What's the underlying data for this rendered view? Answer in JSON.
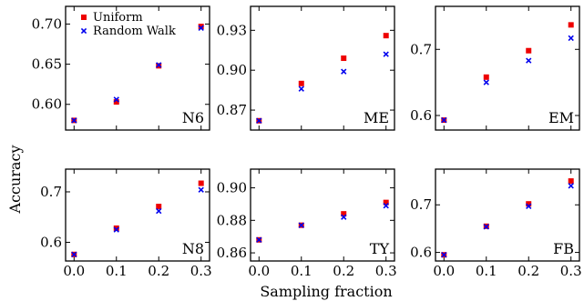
{
  "chart_data": {
    "type": "scatter",
    "xlabel": "Sampling fraction",
    "ylabel": "Accuracy",
    "legend": {
      "placement": "top-left panel, upper-left",
      "entries": [
        {
          "name": "Uniform",
          "marker": "square",
          "color": "#ee0000"
        },
        {
          "name": "Random Walk",
          "marker": "x",
          "color": "#0000ee"
        }
      ]
    },
    "x_ticks": [
      "0.0",
      "0.1",
      "0.2",
      "0.3"
    ],
    "panels": [
      {
        "label": "N6",
        "xlim": [
          -0.02,
          0.32
        ],
        "ylim": [
          0.568,
          0.722
        ],
        "y_ticks": [
          0.6,
          0.65,
          0.7
        ],
        "y_tick_labels": [
          "0.60",
          "0.65",
          "0.70"
        ],
        "series": [
          {
            "name": "Uniform",
            "x": [
              0.0,
              0.1,
              0.2,
              0.3
            ],
            "y": [
              0.58,
              0.603,
              0.648,
              0.697
            ]
          },
          {
            "name": "Random Walk",
            "x": [
              0.0,
              0.1,
              0.2,
              0.3
            ],
            "y": [
              0.58,
              0.606,
              0.649,
              0.695
            ]
          }
        ]
      },
      {
        "label": "ME",
        "xlim": [
          -0.02,
          0.32
        ],
        "ylim": [
          0.855,
          0.948
        ],
        "y_ticks": [
          0.87,
          0.9,
          0.93
        ],
        "y_tick_labels": [
          "0.87",
          "0.90",
          "0.93"
        ],
        "series": [
          {
            "name": "Uniform",
            "x": [
              0.0,
              0.1,
              0.2,
              0.3
            ],
            "y": [
              0.862,
              0.89,
              0.909,
              0.926
            ]
          },
          {
            "name": "Random Walk",
            "x": [
              0.0,
              0.1,
              0.2,
              0.3
            ],
            "y": [
              0.862,
              0.886,
              0.899,
              0.912
            ]
          }
        ]
      },
      {
        "label": "EM",
        "xlim": [
          -0.02,
          0.32
        ],
        "ylim": [
          0.578,
          0.765
        ],
        "y_ticks": [
          0.6,
          0.7
        ],
        "y_tick_labels": [
          "0.6",
          "0.7"
        ],
        "series": [
          {
            "name": "Uniform",
            "x": [
              0.0,
              0.1,
              0.2,
              0.3
            ],
            "y": [
              0.593,
              0.658,
              0.698,
              0.737
            ]
          },
          {
            "name": "Random Walk",
            "x": [
              0.0,
              0.1,
              0.2,
              0.3
            ],
            "y": [
              0.593,
              0.65,
              0.683,
              0.717
            ]
          }
        ]
      },
      {
        "label": "N8",
        "xlim": [
          -0.02,
          0.32
        ],
        "ylim": [
          0.563,
          0.745
        ],
        "y_ticks": [
          0.6,
          0.7
        ],
        "y_tick_labels": [
          "0.6",
          "0.7"
        ],
        "series": [
          {
            "name": "Uniform",
            "x": [
              0.0,
              0.1,
              0.2,
              0.3
            ],
            "y": [
              0.576,
              0.628,
              0.671,
              0.717
            ]
          },
          {
            "name": "Random Walk",
            "x": [
              0.0,
              0.1,
              0.2,
              0.3
            ],
            "y": [
              0.576,
              0.625,
              0.662,
              0.704
            ]
          }
        ]
      },
      {
        "label": "TY",
        "xlim": [
          -0.02,
          0.32
        ],
        "ylim": [
          0.855,
          0.9115
        ],
        "y_ticks": [
          0.86,
          0.88,
          0.9
        ],
        "y_tick_labels": [
          "0.86",
          "0.88",
          "0.90"
        ],
        "series": [
          {
            "name": "Uniform",
            "x": [
              0.0,
              0.1,
              0.2,
              0.3
            ],
            "y": [
              0.868,
              0.877,
              0.884,
              0.891
            ]
          },
          {
            "name": "Random Walk",
            "x": [
              0.0,
              0.1,
              0.2,
              0.3
            ],
            "y": [
              0.868,
              0.877,
              0.882,
              0.889
            ]
          }
        ]
      },
      {
        "label": "FB",
        "xlim": [
          -0.02,
          0.32
        ],
        "ylim": [
          0.582,
          0.775
        ],
        "y_ticks": [
          0.6,
          0.7
        ],
        "y_tick_labels": [
          "0.6",
          "0.7"
        ],
        "series": [
          {
            "name": "Uniform",
            "x": [
              0.0,
              0.1,
              0.2,
              0.3
            ],
            "y": [
              0.595,
              0.655,
              0.702,
              0.75
            ]
          },
          {
            "name": "Random Walk",
            "x": [
              0.0,
              0.1,
              0.2,
              0.3
            ],
            "y": [
              0.595,
              0.654,
              0.697,
              0.74
            ]
          }
        ]
      }
    ]
  }
}
